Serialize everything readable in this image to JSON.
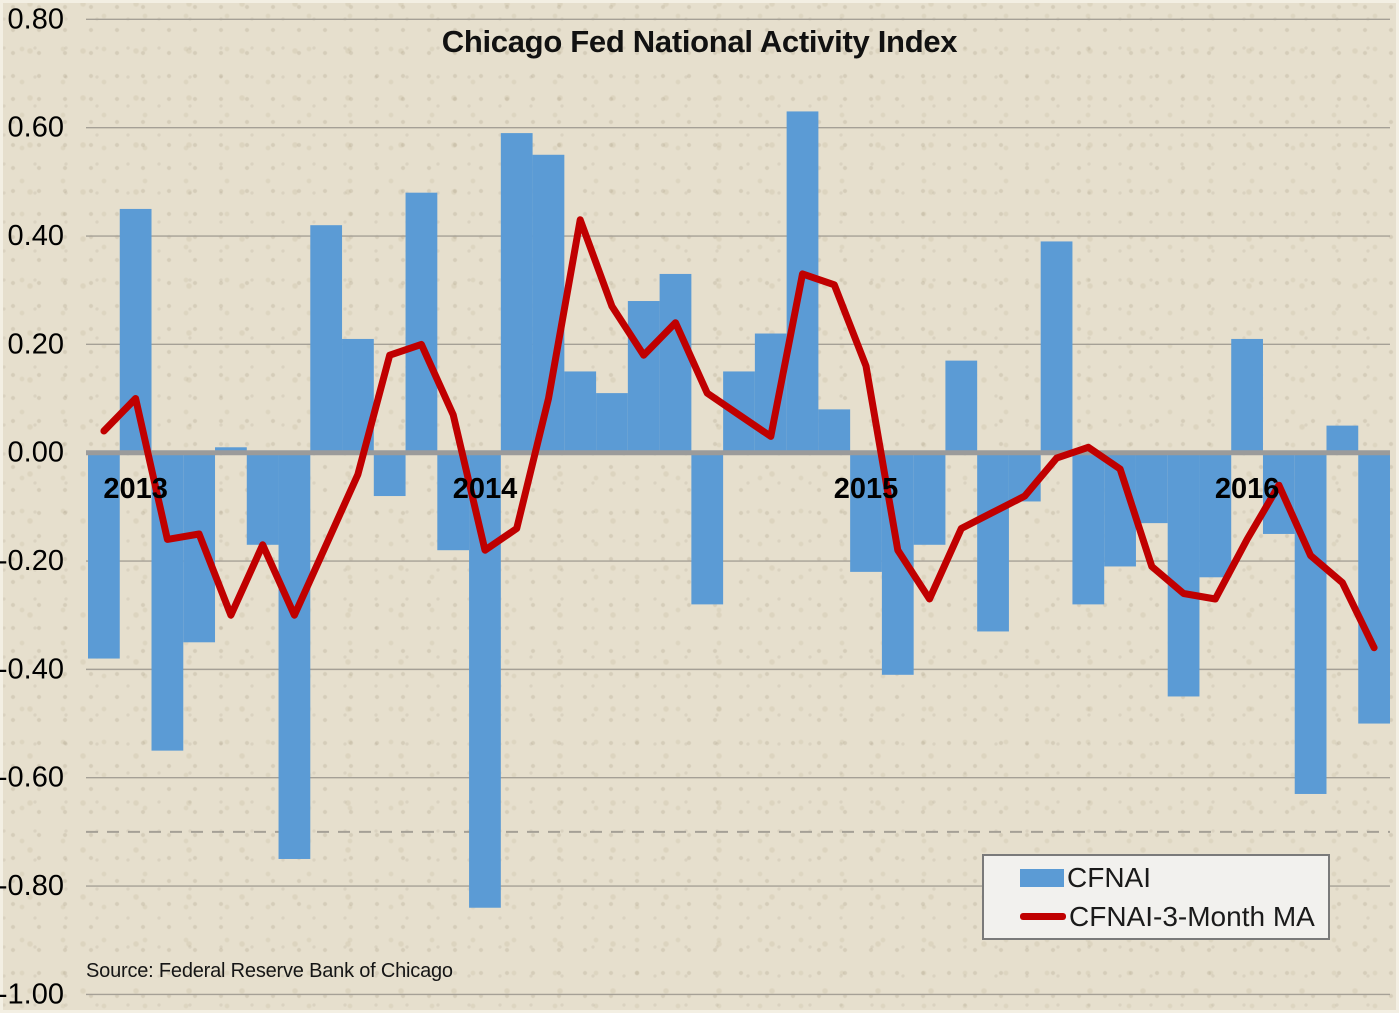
{
  "title": "Chicago Fed National Activity Index",
  "source_note": "Source: Federal Reserve Bank of Chicago",
  "legend": {
    "items": [
      {
        "label": "CFNAI",
        "swatch": "bar",
        "color": "#5B9BD5"
      },
      {
        "label": "CFNAI-3-Month MA",
        "swatch": "line",
        "color": "#C00000"
      }
    ]
  },
  "colors": {
    "background": "#E6DFCD",
    "bar": "#5B9BD5",
    "line": "#C00000",
    "gridline": "#A5A096",
    "zero_axis": "#9B9B9B",
    "threshold": "#A5A096",
    "text": "#000000",
    "legend_bg": "#F2F1EE",
    "legend_border": "#7A7A7A"
  },
  "chart_data": {
    "type": "bar",
    "title": "Chicago Fed National Activity Index",
    "xlabel": "",
    "ylabel": "",
    "grid": true,
    "zero_axis": true,
    "ylim": [
      -1.0,
      0.8
    ],
    "yticks": [
      0.8,
      0.6,
      0.4,
      0.2,
      0.0,
      -0.2,
      -0.4,
      -0.6,
      -0.8,
      -1.0
    ],
    "ytick_decimals": 2,
    "threshold_line": {
      "value": -0.7,
      "style": "dashed"
    },
    "legend_position": "inside-bottom-right",
    "x": [
      "2013-01",
      "2013-02",
      "2013-03",
      "2013-04",
      "2013-05",
      "2013-06",
      "2013-07",
      "2013-08",
      "2013-09",
      "2013-10",
      "2013-11",
      "2013-12",
      "2014-01",
      "2014-02",
      "2014-03",
      "2014-04",
      "2014-05",
      "2014-06",
      "2014-07",
      "2014-08",
      "2014-09",
      "2014-10",
      "2014-11",
      "2014-12",
      "2015-01",
      "2015-02",
      "2015-03",
      "2015-04",
      "2015-05",
      "2015-06",
      "2015-07",
      "2015-08",
      "2015-09",
      "2015-10",
      "2015-11",
      "2015-12",
      "2016-01",
      "2016-02",
      "2016-03",
      "2016-04",
      "2016-05"
    ],
    "year_labels": [
      {
        "label": "2013",
        "month_index": 1
      },
      {
        "label": "2014",
        "month_index": 12
      },
      {
        "label": "2015",
        "month_index": 24
      },
      {
        "label": "2016",
        "month_index": 36
      }
    ],
    "series": [
      {
        "name": "CFNAI",
        "type": "bar",
        "color": "#5B9BD5",
        "values": [
          -0.38,
          0.45,
          -0.55,
          -0.35,
          0.01,
          -0.17,
          -0.75,
          0.42,
          0.21,
          -0.08,
          0.48,
          -0.18,
          -0.84,
          0.59,
          0.55,
          0.15,
          0.11,
          0.28,
          0.33,
          -0.28,
          0.15,
          0.22,
          0.63,
          0.08,
          -0.22,
          -0.41,
          -0.17,
          0.17,
          -0.33,
          -0.09,
          0.39,
          -0.28,
          -0.21,
          -0.13,
          -0.45,
          -0.23,
          0.21,
          -0.15,
          -0.63,
          0.05,
          -0.5
        ]
      },
      {
        "name": "CFNAI-3-Month MA",
        "type": "line",
        "color": "#C00000",
        "values": [
          0.04,
          0.1,
          -0.16,
          -0.15,
          -0.3,
          -0.17,
          -0.3,
          -0.17,
          -0.04,
          0.18,
          0.2,
          0.07,
          -0.18,
          -0.14,
          0.1,
          0.43,
          0.27,
          0.18,
          0.24,
          0.11,
          0.07,
          0.03,
          0.33,
          0.31,
          0.16,
          -0.18,
          -0.27,
          -0.14,
          -0.11,
          -0.08,
          -0.01,
          0.01,
          -0.03,
          -0.21,
          -0.26,
          -0.27,
          -0.16,
          -0.06,
          -0.19,
          -0.24,
          -0.36
        ]
      }
    ]
  }
}
